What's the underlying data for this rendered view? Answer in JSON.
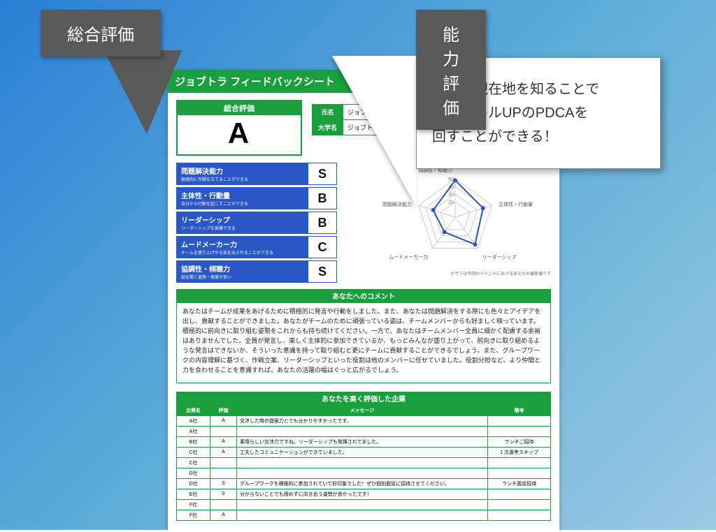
{
  "colors": {
    "green": "#1a9f3e",
    "blue": "#2957c6",
    "grey": "#595959",
    "radar_stroke": "#2957c6",
    "radar_grid": "#cccccc"
  },
  "callouts": {
    "overall_label": "総合評価",
    "ability_label": "能力評価",
    "tooltip_line1": "自分の現在地を知ることで",
    "tooltip_line2": "自己スキルUPのPDCAを",
    "tooltip_line3": "回すことができる！"
  },
  "sheet": {
    "title": "ジョブトラ フィードバックシート",
    "overall": {
      "label": "総合評価",
      "grade": "A"
    },
    "identity": {
      "name_label": "氏名",
      "name_value": "ジョブトラ 太郎",
      "school_label": "大学名",
      "school_value": "ジョブトラ大学"
    },
    "abilities": [
      {
        "title": "問題解決能力",
        "desc": "論理的に作戦を立てることができる",
        "grade": "S"
      },
      {
        "title": "主体性・行動量",
        "desc": "自分から行動を起こすことができる",
        "grade": "B"
      },
      {
        "title": "リーダーシップ",
        "desc": "リーダーシップを発揮できる",
        "grade": "B"
      },
      {
        "title": "ムードメーカー力",
        "desc": "チームを盛り上げやる気を出させることができる",
        "grade": "C"
      },
      {
        "title": "協調性・傾聴力",
        "desc": "話を聞く姿勢・態度が良い",
        "grade": "S"
      }
    ],
    "radar": {
      "ticks": [
        "50",
        "40",
        "30",
        "20"
      ],
      "labels": [
        "協調性・傾聴力",
        "主体性・行動量",
        "リーダーシップ",
        "ムードメーカー力",
        "問題解決能力"
      ],
      "values": [
        48,
        38,
        44,
        24,
        30
      ],
      "max": 50,
      "footnote": "グラフは今回のイベントにおけるあなたの偏差値です"
    },
    "comment": {
      "title": "あなたへのコメント",
      "body": "あなたはチームが成果をあげるために積極的に発言や行動をしました。また、あなたは問題解決をする際にも色々とアイデアを出し、貢献することができました。あなたがチームのために頑張っている姿は、チームメンバーからも好ましく映っています。積極的に前向きに取り組む姿勢をこれからも持ち続けてください。一方で、あなたはチームメンバー全員に細かく配慮する余裕はありませんでした。全員が発言し、楽しく主体的に参加できているか、もっとみんなが盛り上がって、前向きに取り組めるような発言はできないか、そういった意識を持って取り組むと更にチームに貢献することができるでしょう。また、グループワークの内容理解に基づく、作戦立案、リーダーシップといった役割は他のメンバーに任せていました。役割分担など、より仲間と力を合わせることを意識すれば、あなたの活躍の幅はぐっと広がるでしょう。"
    },
    "company_eval": {
      "title": "あなたを高く評価した企業",
      "headers": {
        "company": "企業名",
        "grade": "評価",
        "msg": "メッセージ",
        "note": "備考"
      },
      "rows": [
        {
          "company": "A社",
          "grade": "A",
          "msg": "交渉した時の提案力とても分かりやすかったです。",
          "note": ""
        },
        {
          "company": "A社",
          "grade": "",
          "msg": "",
          "note": ""
        },
        {
          "company": "B社",
          "grade": "A",
          "msg": "素晴らしい交渉力ですね。リーダーシップも発揮されてました。",
          "note": "ランチご招待"
        },
        {
          "company": "C社",
          "grade": "A",
          "msg": "工夫したコミュニケーションができていました。",
          "note": "1 次選考スキップ"
        },
        {
          "company": "C社",
          "grade": "",
          "msg": "",
          "note": ""
        },
        {
          "company": "D社",
          "grade": "",
          "msg": "",
          "note": ""
        },
        {
          "company": "D社",
          "grade": "S",
          "msg": "グループワークを積極的に参加されていて好印象でした！ぜひ個別面談に招待させてください。",
          "note": "ランチ面談招待"
        },
        {
          "company": "E社",
          "grade": "S",
          "msg": "分からないことでも諦めずに向き合う姿勢が良かったです！",
          "note": ""
        },
        {
          "company": "F社",
          "grade": "",
          "msg": "",
          "note": ""
        },
        {
          "company": "F社",
          "grade": "A",
          "msg": "",
          "note": ""
        }
      ]
    }
  }
}
